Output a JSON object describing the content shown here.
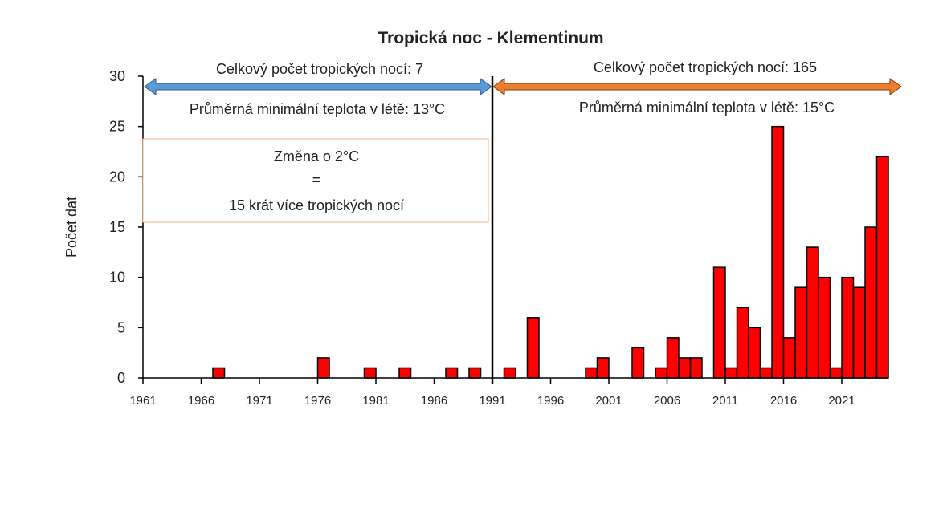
{
  "chart_data": {
    "type": "bar",
    "title": "Tropická noc - Klementinum",
    "ylabel": "Počet dat",
    "xlabel": "",
    "ylim": [
      0,
      30
    ],
    "yticks": [
      "0",
      "5",
      "10",
      "15",
      "20",
      "25",
      "30"
    ],
    "xticks": [
      "1961",
      "1966",
      "1971",
      "1976",
      "1981",
      "1986",
      "1991",
      "1996",
      "2001",
      "2006",
      "2011",
      "2016",
      "2021"
    ],
    "x_range": [
      1961,
      2024
    ],
    "bar_color": "#ff0000",
    "points": [
      {
        "year": 1967,
        "value": 1
      },
      {
        "year": 1976,
        "value": 2
      },
      {
        "year": 1980,
        "value": 1
      },
      {
        "year": 1983,
        "value": 1
      },
      {
        "year": 1987,
        "value": 1
      },
      {
        "year": 1989,
        "value": 1
      },
      {
        "year": 1992,
        "value": 1
      },
      {
        "year": 1994,
        "value": 6
      },
      {
        "year": 1999,
        "value": 1
      },
      {
        "year": 2000,
        "value": 2
      },
      {
        "year": 2003,
        "value": 3
      },
      {
        "year": 2005,
        "value": 1
      },
      {
        "year": 2006,
        "value": 4
      },
      {
        "year": 2007,
        "value": 2
      },
      {
        "year": 2008,
        "value": 2
      },
      {
        "year": 2010,
        "value": 11
      },
      {
        "year": 2011,
        "value": 1
      },
      {
        "year": 2012,
        "value": 7
      },
      {
        "year": 2013,
        "value": 5
      },
      {
        "year": 2014,
        "value": 1
      },
      {
        "year": 2015,
        "value": 25
      },
      {
        "year": 2016,
        "value": 4
      },
      {
        "year": 2017,
        "value": 9
      },
      {
        "year": 2018,
        "value": 13
      },
      {
        "year": 2019,
        "value": 10
      },
      {
        "year": 2020,
        "value": 1
      },
      {
        "year": 2021,
        "value": 10
      },
      {
        "year": 2022,
        "value": 9
      },
      {
        "year": 2023,
        "value": 15
      },
      {
        "year": 2024,
        "value": 22
      }
    ],
    "divider_year": 1991,
    "annotations": {
      "left_total": "Celkový počet tropických nocí: 7",
      "left_avg": "Průměrná minimální teplota v létě: 13°C",
      "right_total": "Celkový počet tropických nocí: 165",
      "right_avg": "Průměrná minimální teplota v létě: 15°C",
      "box_line1": "Změna o 2°C",
      "box_line2": "=",
      "box_line3": "15 krát více tropických nocí",
      "left_arrow_color": "#5b9bd5",
      "right_arrow_color": "#ed7d31"
    }
  }
}
